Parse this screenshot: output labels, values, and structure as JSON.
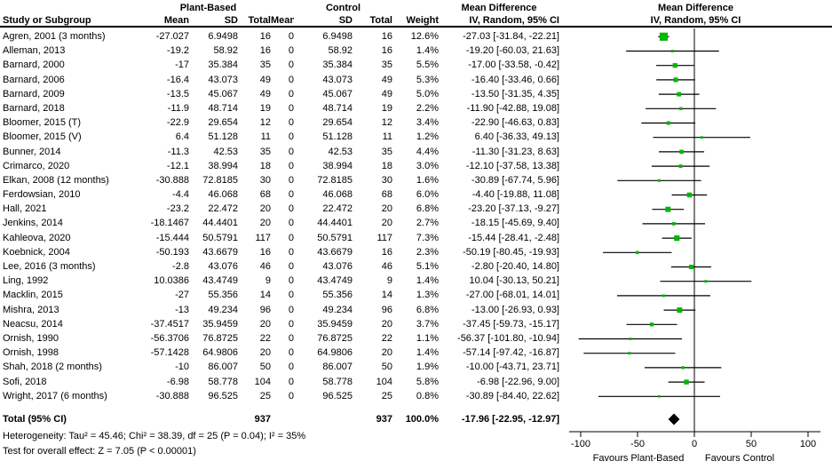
{
  "chart_data": {
    "type": "forest",
    "header": {
      "group1": "Plant-Based",
      "group2": "Control",
      "col_study": "Study or Subgroup",
      "col_mean": "Mean",
      "col_sd": "SD",
      "col_total": "Total",
      "col_weight": "Weight",
      "md_title": "Mean Difference",
      "md_sub": "IV, Random, 95% CI"
    },
    "studies": [
      {
        "name": "Agren, 2001 (3 months)",
        "pb_mean": "-27.027",
        "pb_sd": "6.9498",
        "pb_total": "16",
        "c_mean": "0",
        "c_sd": "6.9498",
        "c_total": "16",
        "weight": "12.6%",
        "md": "-27.03 [-31.84, -22.21]",
        "est": -27.03,
        "lo": -31.84,
        "hi": -22.21,
        "w": 12.6
      },
      {
        "name": "Alleman, 2013",
        "pb_mean": "-19.2",
        "pb_sd": "58.92",
        "pb_total": "16",
        "c_mean": "0",
        "c_sd": "58.92",
        "c_total": "16",
        "weight": "1.4%",
        "md": "-19.20 [-60.03, 21.63]",
        "est": -19.2,
        "lo": -60.03,
        "hi": 21.63,
        "w": 1.4
      },
      {
        "name": "Barnard, 2000",
        "pb_mean": "-17",
        "pb_sd": "35.384",
        "pb_total": "35",
        "c_mean": "0",
        "c_sd": "35.384",
        "c_total": "35",
        "weight": "5.5%",
        "md": "-17.00 [-33.58, -0.42]",
        "est": -17.0,
        "lo": -33.58,
        "hi": -0.42,
        "w": 5.5
      },
      {
        "name": "Barnard, 2006",
        "pb_mean": "-16.4",
        "pb_sd": "43.073",
        "pb_total": "49",
        "c_mean": "0",
        "c_sd": "43.073",
        "c_total": "49",
        "weight": "5.3%",
        "md": "-16.40 [-33.46, 0.66]",
        "est": -16.4,
        "lo": -33.46,
        "hi": 0.66,
        "w": 5.3
      },
      {
        "name": "Barnard, 2009",
        "pb_mean": "-13.5",
        "pb_sd": "45.067",
        "pb_total": "49",
        "c_mean": "0",
        "c_sd": "45.067",
        "c_total": "49",
        "weight": "5.0%",
        "md": "-13.50 [-31.35, 4.35]",
        "est": -13.5,
        "lo": -31.35,
        "hi": 4.35,
        "w": 5.0
      },
      {
        "name": "Barnard, 2018",
        "pb_mean": "-11.9",
        "pb_sd": "48.714",
        "pb_total": "19",
        "c_mean": "0",
        "c_sd": "48.714",
        "c_total": "19",
        "weight": "2.2%",
        "md": "-11.90 [-42.88, 19.08]",
        "est": -11.9,
        "lo": -42.88,
        "hi": 19.08,
        "w": 2.2
      },
      {
        "name": "Bloomer, 2015 (T)",
        "pb_mean": "-22.9",
        "pb_sd": "29.654",
        "pb_total": "12",
        "c_mean": "0",
        "c_sd": "29.654",
        "c_total": "12",
        "weight": "3.4%",
        "md": "-22.90 [-46.63, 0.83]",
        "est": -22.9,
        "lo": -46.63,
        "hi": 0.83,
        "w": 3.4
      },
      {
        "name": "Bloomer, 2015 (V)",
        "pb_mean": "6.4",
        "pb_sd": "51.128",
        "pb_total": "11",
        "c_mean": "0",
        "c_sd": "51.128",
        "c_total": "11",
        "weight": "1.2%",
        "md": "6.40 [-36.33, 49.13]",
        "est": 6.4,
        "lo": -36.33,
        "hi": 49.13,
        "w": 1.2
      },
      {
        "name": "Bunner, 2014",
        "pb_mean": "-11.3",
        "pb_sd": "42.53",
        "pb_total": "35",
        "c_mean": "0",
        "c_sd": "42.53",
        "c_total": "35",
        "weight": "4.4%",
        "md": "-11.30 [-31.23, 8.63]",
        "est": -11.3,
        "lo": -31.23,
        "hi": 8.63,
        "w": 4.4
      },
      {
        "name": "Crimarco, 2020",
        "pb_mean": "-12.1",
        "pb_sd": "38.994",
        "pb_total": "18",
        "c_mean": "0",
        "c_sd": "38.994",
        "c_total": "18",
        "weight": "3.0%",
        "md": "-12.10 [-37.58, 13.38]",
        "est": -12.1,
        "lo": -37.58,
        "hi": 13.38,
        "w": 3.0
      },
      {
        "name": "Elkan, 2008 (12 months)",
        "pb_mean": "-30.888",
        "pb_sd": "72.8185",
        "pb_total": "30",
        "c_mean": "0",
        "c_sd": "72.8185",
        "c_total": "30",
        "weight": "1.6%",
        "md": "-30.89 [-67.74, 5.96]",
        "est": -30.89,
        "lo": -67.74,
        "hi": 5.96,
        "w": 1.6
      },
      {
        "name": "Ferdowsian, 2010",
        "pb_mean": "-4.4",
        "pb_sd": "46.068",
        "pb_total": "68",
        "c_mean": "0",
        "c_sd": "46.068",
        "c_total": "68",
        "weight": "6.0%",
        "md": "-4.40 [-19.88, 11.08]",
        "est": -4.4,
        "lo": -19.88,
        "hi": 11.08,
        "w": 6.0
      },
      {
        "name": "Hall, 2021",
        "pb_mean": "-23.2",
        "pb_sd": "22.472",
        "pb_total": "20",
        "c_mean": "0",
        "c_sd": "22.472",
        "c_total": "20",
        "weight": "6.8%",
        "md": "-23.20 [-37.13, -9.27]",
        "est": -23.2,
        "lo": -37.13,
        "hi": -9.27,
        "w": 6.8
      },
      {
        "name": "Jenkins, 2014",
        "pb_mean": "-18.1467",
        "pb_sd": "44.4401",
        "pb_total": "20",
        "c_mean": "0",
        "c_sd": "44.4401",
        "c_total": "20",
        "weight": "2.7%",
        "md": "-18.15 [-45.69, 9.40]",
        "est": -18.15,
        "lo": -45.69,
        "hi": 9.4,
        "w": 2.7
      },
      {
        "name": "Kahleova, 2020",
        "pb_mean": "-15.444",
        "pb_sd": "50.5791",
        "pb_total": "117",
        "c_mean": "0",
        "c_sd": "50.5791",
        "c_total": "117",
        "weight": "7.3%",
        "md": "-15.44 [-28.41, -2.48]",
        "est": -15.44,
        "lo": -28.41,
        "hi": -2.48,
        "w": 7.3
      },
      {
        "name": "Koebnick, 2004",
        "pb_mean": "-50.193",
        "pb_sd": "43.6679",
        "pb_total": "16",
        "c_mean": "0",
        "c_sd": "43.6679",
        "c_total": "16",
        "weight": "2.3%",
        "md": "-50.19 [-80.45, -19.93]",
        "est": -50.19,
        "lo": -80.45,
        "hi": -19.93,
        "w": 2.3
      },
      {
        "name": "Lee, 2016 (3 months)",
        "pb_mean": "-2.8",
        "pb_sd": "43.076",
        "pb_total": "46",
        "c_mean": "0",
        "c_sd": "43.076",
        "c_total": "46",
        "weight": "5.1%",
        "md": "-2.80 [-20.40, 14.80]",
        "est": -2.8,
        "lo": -20.4,
        "hi": 14.8,
        "w": 5.1
      },
      {
        "name": "Ling, 1992",
        "pb_mean": "10.0386",
        "pb_sd": "43.4749",
        "pb_total": "9",
        "c_mean": "0",
        "c_sd": "43.4749",
        "c_total": "9",
        "weight": "1.4%",
        "md": "10.04 [-30.13, 50.21]",
        "est": 10.04,
        "lo": -30.13,
        "hi": 50.21,
        "w": 1.4
      },
      {
        "name": "Macklin, 2015",
        "pb_mean": "-27",
        "pb_sd": "55.356",
        "pb_total": "14",
        "c_mean": "0",
        "c_sd": "55.356",
        "c_total": "14",
        "weight": "1.3%",
        "md": "-27.00 [-68.01, 14.01]",
        "est": -27.0,
        "lo": -68.01,
        "hi": 14.01,
        "w": 1.3
      },
      {
        "name": "Mishra, 2013",
        "pb_mean": "-13",
        "pb_sd": "49.234",
        "pb_total": "96",
        "c_mean": "0",
        "c_sd": "49.234",
        "c_total": "96",
        "weight": "6.8%",
        "md": "-13.00 [-26.93, 0.93]",
        "est": -13.0,
        "lo": -26.93,
        "hi": 0.93,
        "w": 6.8
      },
      {
        "name": "Neacsu, 2014",
        "pb_mean": "-37.4517",
        "pb_sd": "35.9459",
        "pb_total": "20",
        "c_mean": "0",
        "c_sd": "35.9459",
        "c_total": "20",
        "weight": "3.7%",
        "md": "-37.45 [-59.73, -15.17]",
        "est": -37.45,
        "lo": -59.73,
        "hi": -15.17,
        "w": 3.7
      },
      {
        "name": "Ornish, 1990",
        "pb_mean": "-56.3706",
        "pb_sd": "76.8725",
        "pb_total": "22",
        "c_mean": "0",
        "c_sd": "76.8725",
        "c_total": "22",
        "weight": "1.1%",
        "md": "-56.37 [-101.80, -10.94]",
        "est": -56.37,
        "lo": -101.8,
        "hi": -10.94,
        "w": 1.1
      },
      {
        "name": "Ornish, 1998",
        "pb_mean": "-57.1428",
        "pb_sd": "64.9806",
        "pb_total": "20",
        "c_mean": "0",
        "c_sd": "64.9806",
        "c_total": "20",
        "weight": "1.4%",
        "md": "-57.14 [-97.42, -16.87]",
        "est": -57.14,
        "lo": -97.42,
        "hi": -16.87,
        "w": 1.4
      },
      {
        "name": "Shah, 2018 (2 months)",
        "pb_mean": "-10",
        "pb_sd": "86.007",
        "pb_total": "50",
        "c_mean": "0",
        "c_sd": "86.007",
        "c_total": "50",
        "weight": "1.9%",
        "md": "-10.00 [-43.71, 23.71]",
        "est": -10.0,
        "lo": -43.71,
        "hi": 23.71,
        "w": 1.9
      },
      {
        "name": "Sofi, 2018",
        "pb_mean": "-6.98",
        "pb_sd": "58.778",
        "pb_total": "104",
        "c_mean": "0",
        "c_sd": "58.778",
        "c_total": "104",
        "weight": "5.8%",
        "md": "-6.98 [-22.96, 9.00]",
        "est": -6.98,
        "lo": -22.96,
        "hi": 9.0,
        "w": 5.8
      },
      {
        "name": "Wright, 2017 (6 months)",
        "pb_mean": "-30.888",
        "pb_sd": "96.525",
        "pb_total": "25",
        "c_mean": "0",
        "c_sd": "96.525",
        "c_total": "25",
        "weight": "0.8%",
        "md": "-30.89 [-84.40, 22.62]",
        "est": -30.89,
        "lo": -84.4,
        "hi": 22.62,
        "w": 0.8
      }
    ],
    "total": {
      "label": "Total (95% CI)",
      "pb_total": "937",
      "c_total": "937",
      "weight": "100.0%",
      "md": "-17.96 [-22.95, -12.97]",
      "est": -17.96,
      "lo": -22.95,
      "hi": -12.97
    },
    "footer": {
      "heterogeneity": "Heterogeneity: Tau² = 45.46; Chi² = 38.39, df = 25 (P = 0.04); I² = 35%",
      "overall_effect": "Test for overall effect: Z = 7.05 (P < 0.00001)"
    },
    "axis": {
      "ticks": [
        -100,
        -50,
        0,
        50,
        100
      ],
      "tick_labels": [
        "-100",
        "-50",
        "0",
        "50",
        "100"
      ],
      "favours_left": "Favours Plant-Based",
      "favours_right": "Favours Control",
      "xlim": [
        -110,
        110
      ]
    },
    "colors": {
      "marker_green": "#00b800",
      "diamond_black": "#000000",
      "line_black": "#000000"
    }
  }
}
